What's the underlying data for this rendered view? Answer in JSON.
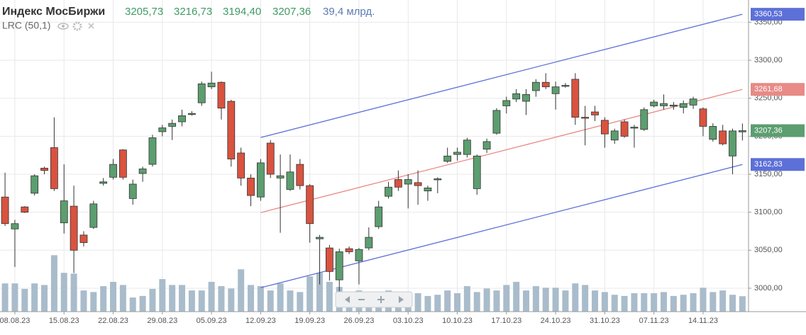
{
  "header": {
    "title": "Индекс МосБиржи",
    "value_labels": [
      "3205,73",
      "3216,73",
      "3194,40",
      "3207,36"
    ],
    "volume_label": "39,4 млрд."
  },
  "chart_data": {
    "type": "candlestick",
    "categories": [
      null,
      "08.08.23",
      null,
      null,
      null,
      null,
      "15.08.23",
      null,
      null,
      null,
      null,
      "22.08.23",
      null,
      null,
      null,
      null,
      "29.08.23",
      null,
      null,
      null,
      null,
      "05.09.23",
      null,
      null,
      null,
      null,
      "12.09.23",
      null,
      null,
      null,
      null,
      "19.09.23",
      null,
      null,
      null,
      null,
      "26.09.23",
      null,
      null,
      null,
      null,
      "03.10.23",
      null,
      null,
      null,
      null,
      "10.10.23",
      null,
      null,
      null,
      null,
      "17.10.23",
      null,
      null,
      null,
      null,
      "24.10.23",
      null,
      null,
      null,
      null,
      "31.10.23",
      null,
      null,
      null,
      null,
      "07.11.23",
      null,
      null,
      null,
      null,
      "14.11.23",
      null,
      null,
      null,
      null
    ],
    "open": [
      3120,
      3078,
      3107,
      3125,
      3158,
      3185,
      3086,
      3108,
      3070,
      3080,
      3138,
      3146,
      3182,
      3118,
      3151,
      3163,
      3206,
      3213,
      3219,
      3229,
      3244,
      3265,
      3271,
      3246,
      3178,
      3145,
      3120,
      3191,
      3145,
      3130,
      3163,
      3135,
      3065,
      3053,
      3011,
      3052,
      3036,
      3053,
      3081,
      3121,
      3143,
      3137,
      3139,
      3128,
      3143,
      3167,
      3176,
      3176,
      3131,
      3183,
      3204,
      3240,
      3249,
      3246,
      3260,
      3271,
      3256,
      3266,
      3275,
      3225,
      3232,
      3221,
      3195,
      3219,
      3211,
      3209,
      3240,
      3240,
      3240,
      3238,
      3241,
      3236,
      3196,
      3207,
      3174,
      3205.73
    ],
    "high": [
      3152,
      3090,
      3108,
      3150,
      3160,
      3225,
      3163,
      3135,
      3075,
      3115,
      3145,
      3170,
      3183,
      3143,
      3160,
      3202,
      3215,
      3222,
      3235,
      3233,
      3272,
      3285,
      3272,
      3248,
      3185,
      3150,
      3170,
      3195,
      3176,
      3176,
      3170,
      3137,
      3070,
      3057,
      3052,
      3055,
      3053,
      3080,
      3115,
      3140,
      3155,
      3150,
      3155,
      3135,
      3146,
      3185,
      3185,
      3198,
      3176,
      3197,
      3237,
      3252,
      3262,
      3262,
      3275,
      3283,
      3272,
      3270,
      3283,
      3240,
      3240,
      3225,
      3210,
      3222,
      3215,
      3238,
      3248,
      3255,
      3245,
      3247,
      3252,
      3238,
      3217,
      3215,
      3210,
      3216.73
    ],
    "low": [
      3082,
      3028,
      3099,
      3122,
      3150,
      3128,
      3072,
      3020,
      3055,
      3078,
      3135,
      3143,
      3143,
      3110,
      3140,
      3160,
      3200,
      3195,
      3213,
      3227,
      3240,
      3262,
      3222,
      3160,
      3135,
      3108,
      3115,
      3145,
      3073,
      3128,
      3130,
      3060,
      3005,
      3010,
      2995,
      3045,
      3005,
      3050,
      3078,
      3118,
      3128,
      3105,
      3110,
      3115,
      3125,
      3165,
      3168,
      3172,
      3123,
      3178,
      3202,
      3230,
      3245,
      3228,
      3252,
      3262,
      3235,
      3264,
      3215,
      3188,
      3220,
      3185,
      3190,
      3198,
      3185,
      3207,
      3238,
      3235,
      3235,
      3230,
      3236,
      3200,
      3193,
      3188,
      3150,
      3194.4
    ],
    "close": [
      3085,
      3085,
      3100,
      3148,
      3155,
      3131,
      3115,
      3050,
      3060,
      3111,
      3140,
      3163,
      3146,
      3137,
      3157,
      3198,
      3211,
      3217,
      3227,
      3230,
      3269,
      3270,
      3237,
      3170,
      3145,
      3122,
      3165,
      3150,
      3148,
      3153,
      3135,
      3085,
      3067,
      3022,
      3048,
      3048,
      3051,
      3067,
      3107,
      3133,
      3133,
      3143,
      3135,
      3132,
      3144,
      3174,
      3179,
      3195,
      3174,
      3193,
      3234,
      3247,
      3256,
      3255,
      3271,
      3265,
      3265,
      3267,
      3225,
      3224,
      3228,
      3203,
      3207,
      3200,
      3212,
      3235,
      3245,
      3243,
      3241,
      3243,
      3249,
      3213,
      3213,
      3190,
      3207,
      3207.36
    ],
    "volume": [
      72,
      72,
      58,
      72,
      68,
      144,
      99,
      97,
      54,
      50,
      65,
      76,
      68,
      36,
      40,
      58,
      83,
      68,
      68,
      54,
      54,
      76,
      65,
      59,
      108,
      68,
      65,
      54,
      72,
      54,
      50,
      90,
      99,
      76,
      63,
      50,
      54,
      50,
      45,
      54,
      50,
      45,
      47,
      40,
      43,
      54,
      47,
      65,
      50,
      59,
      54,
      68,
      76,
      54,
      65,
      61,
      61,
      54,
      72,
      68,
      54,
      50,
      43,
      40,
      47,
      47,
      47,
      50,
      40,
      43,
      47,
      61,
      50,
      54,
      43,
      39.4
    ],
    "volume_lim": [
      0,
      150
    ],
    "up_color": "#5c9e6f",
    "down_color": "#d9533f",
    "volume_color": "#a9bccb",
    "ylim": [
      2969.2,
      3379.3
    ],
    "yticks": [
      {
        "value": 3000,
        "label": "3000,00"
      },
      {
        "value": 3050,
        "label": "3050,00"
      },
      {
        "value": 3100,
        "label": "3100,00"
      },
      {
        "value": 3150,
        "label": "3150,00"
      },
      {
        "value": 3200,
        "label": "3200,00"
      },
      {
        "value": 3250,
        "label": "3250,00"
      },
      {
        "value": 3300,
        "label": "3300,00"
      },
      {
        "value": 3350,
        "label": "3350,00"
      }
    ],
    "grid": true,
    "lrc": {
      "label": "LRC (50,1)",
      "lines": [
        {
          "color": "#5d70d8",
          "x": [
            26,
            75
          ],
          "values": [
            3198.35,
            3360.53
          ],
          "value_labels": [
            null,
            "3360,53"
          ]
        },
        {
          "color": "#e88a86",
          "x": [
            26,
            75
          ],
          "values": [
            3099.5,
            3261.68
          ],
          "value_labels": [
            null,
            "3261,68"
          ]
        },
        {
          "color": "#5d70d8",
          "x": [
            26,
            75
          ],
          "values": [
            3000.65,
            3162.83
          ],
          "value_labels": [
            null,
            "3162,83"
          ]
        }
      ]
    }
  }
}
